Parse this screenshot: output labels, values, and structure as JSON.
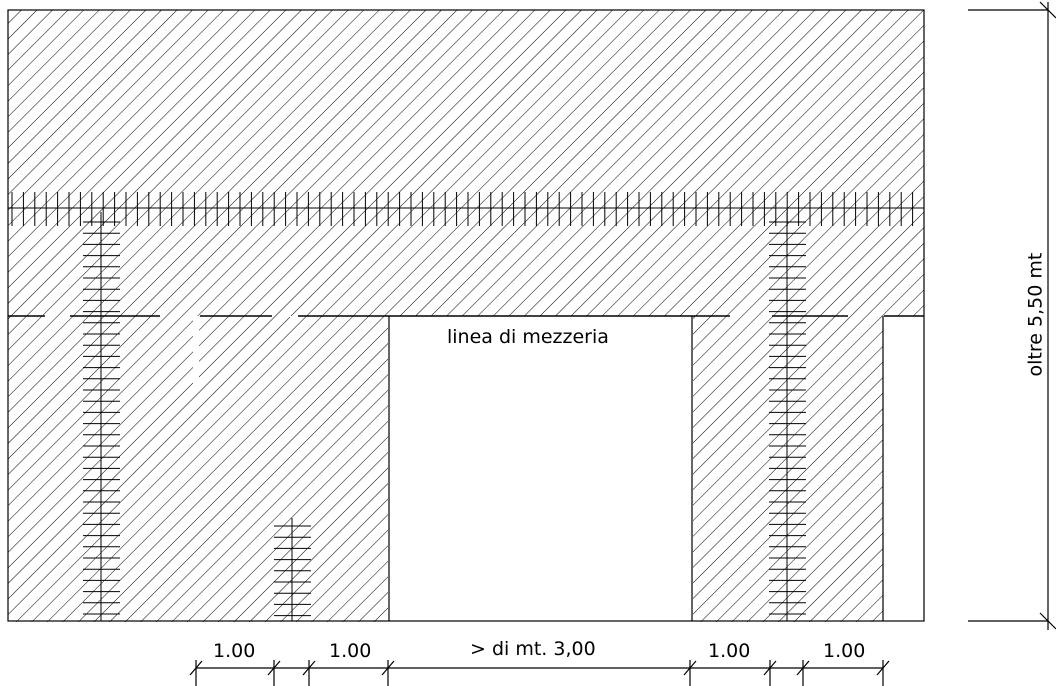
{
  "labels": {
    "centerline": "linea di mezzeria",
    "dim_1": "1.00",
    "dim_2": "1.00",
    "dim_3": "> di mt. 3,00",
    "dim_4": "1.00",
    "dim_5": "1.00",
    "height": "oltre 5,50 mt"
  }
}
